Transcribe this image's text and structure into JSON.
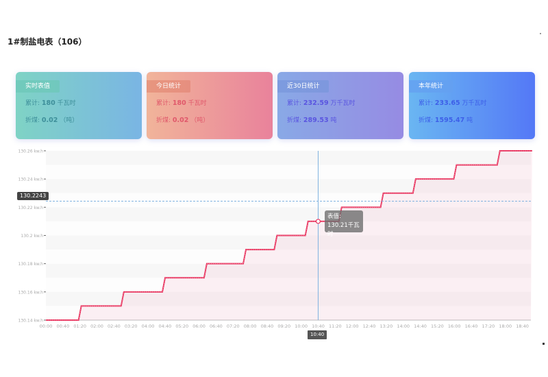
{
  "title": "1#制盐电表（106）",
  "cards": [
    {
      "tag": "实时表值",
      "total_label": "累计:",
      "total_value": "180",
      "total_unit": "千瓦时",
      "coal_label": "折煤:",
      "coal_value": "0.02",
      "coal_unit": "（吨）"
    },
    {
      "tag": "今日统计",
      "total_label": "累计:",
      "total_value": "180",
      "total_unit": "千瓦时",
      "coal_label": "折煤:",
      "coal_value": "0.02",
      "coal_unit": "（吨）"
    },
    {
      "tag": "近30日统计",
      "total_label": "累计:",
      "total_value": "232.59",
      "total_unit": "万千瓦时",
      "coal_label": "折煤:",
      "coal_value": "289.53",
      "coal_unit": "吨"
    },
    {
      "tag": "本年统计",
      "total_label": "累计:",
      "total_value": "233.65",
      "total_unit": "万千瓦时",
      "coal_label": "折煤:",
      "coal_value": "1595.47",
      "coal_unit": "吨"
    }
  ],
  "tooltip": {
    "label": "表值:",
    "value": "130.21千瓦时"
  },
  "crosshair": {
    "y_label": "130.2243",
    "x_label": "10:40",
    "y_value": 130.2243,
    "x_minutes": 640
  },
  "chart_data": {
    "type": "line",
    "step": true,
    "ylim": [
      130.14,
      130.26
    ],
    "xlim_minutes": [
      0,
      1140
    ],
    "y_ticks": [
      "130.14 kw.h",
      "130.16 kw.h",
      "130.18 kw.h",
      "130.2 kw.h",
      "130.22 kw.h",
      "130.24 kw.h",
      "130.26 kw.h"
    ],
    "y_tick_values": [
      130.14,
      130.16,
      130.18,
      130.2,
      130.22,
      130.24,
      130.26
    ],
    "x_ticks": [
      "00:00",
      "00:40",
      "01:20",
      "02:00",
      "02:40",
      "03:20",
      "04:00",
      "04:40",
      "05:20",
      "06:00",
      "06:40",
      "07:20",
      "08:00",
      "08:40",
      "09:20",
      "10:00",
      "10:40",
      "11:20",
      "12:00",
      "12:40",
      "13:20",
      "14:00",
      "14:40",
      "15:20",
      "16:00",
      "16:40",
      "17:20",
      "18:00",
      "18:40"
    ],
    "series": [
      {
        "name": "表值",
        "color": "#e8335e",
        "x_minutes": [
          0,
          80,
          180,
          277,
          375,
          467,
          540,
          613,
          692,
          790,
          866,
          962,
          1064,
          1140
        ],
        "values": [
          130.14,
          130.15,
          130.16,
          130.17,
          130.18,
          130.19,
          130.2,
          130.21,
          130.22,
          130.23,
          130.24,
          130.25,
          130.26,
          130.26
        ]
      }
    ]
  }
}
